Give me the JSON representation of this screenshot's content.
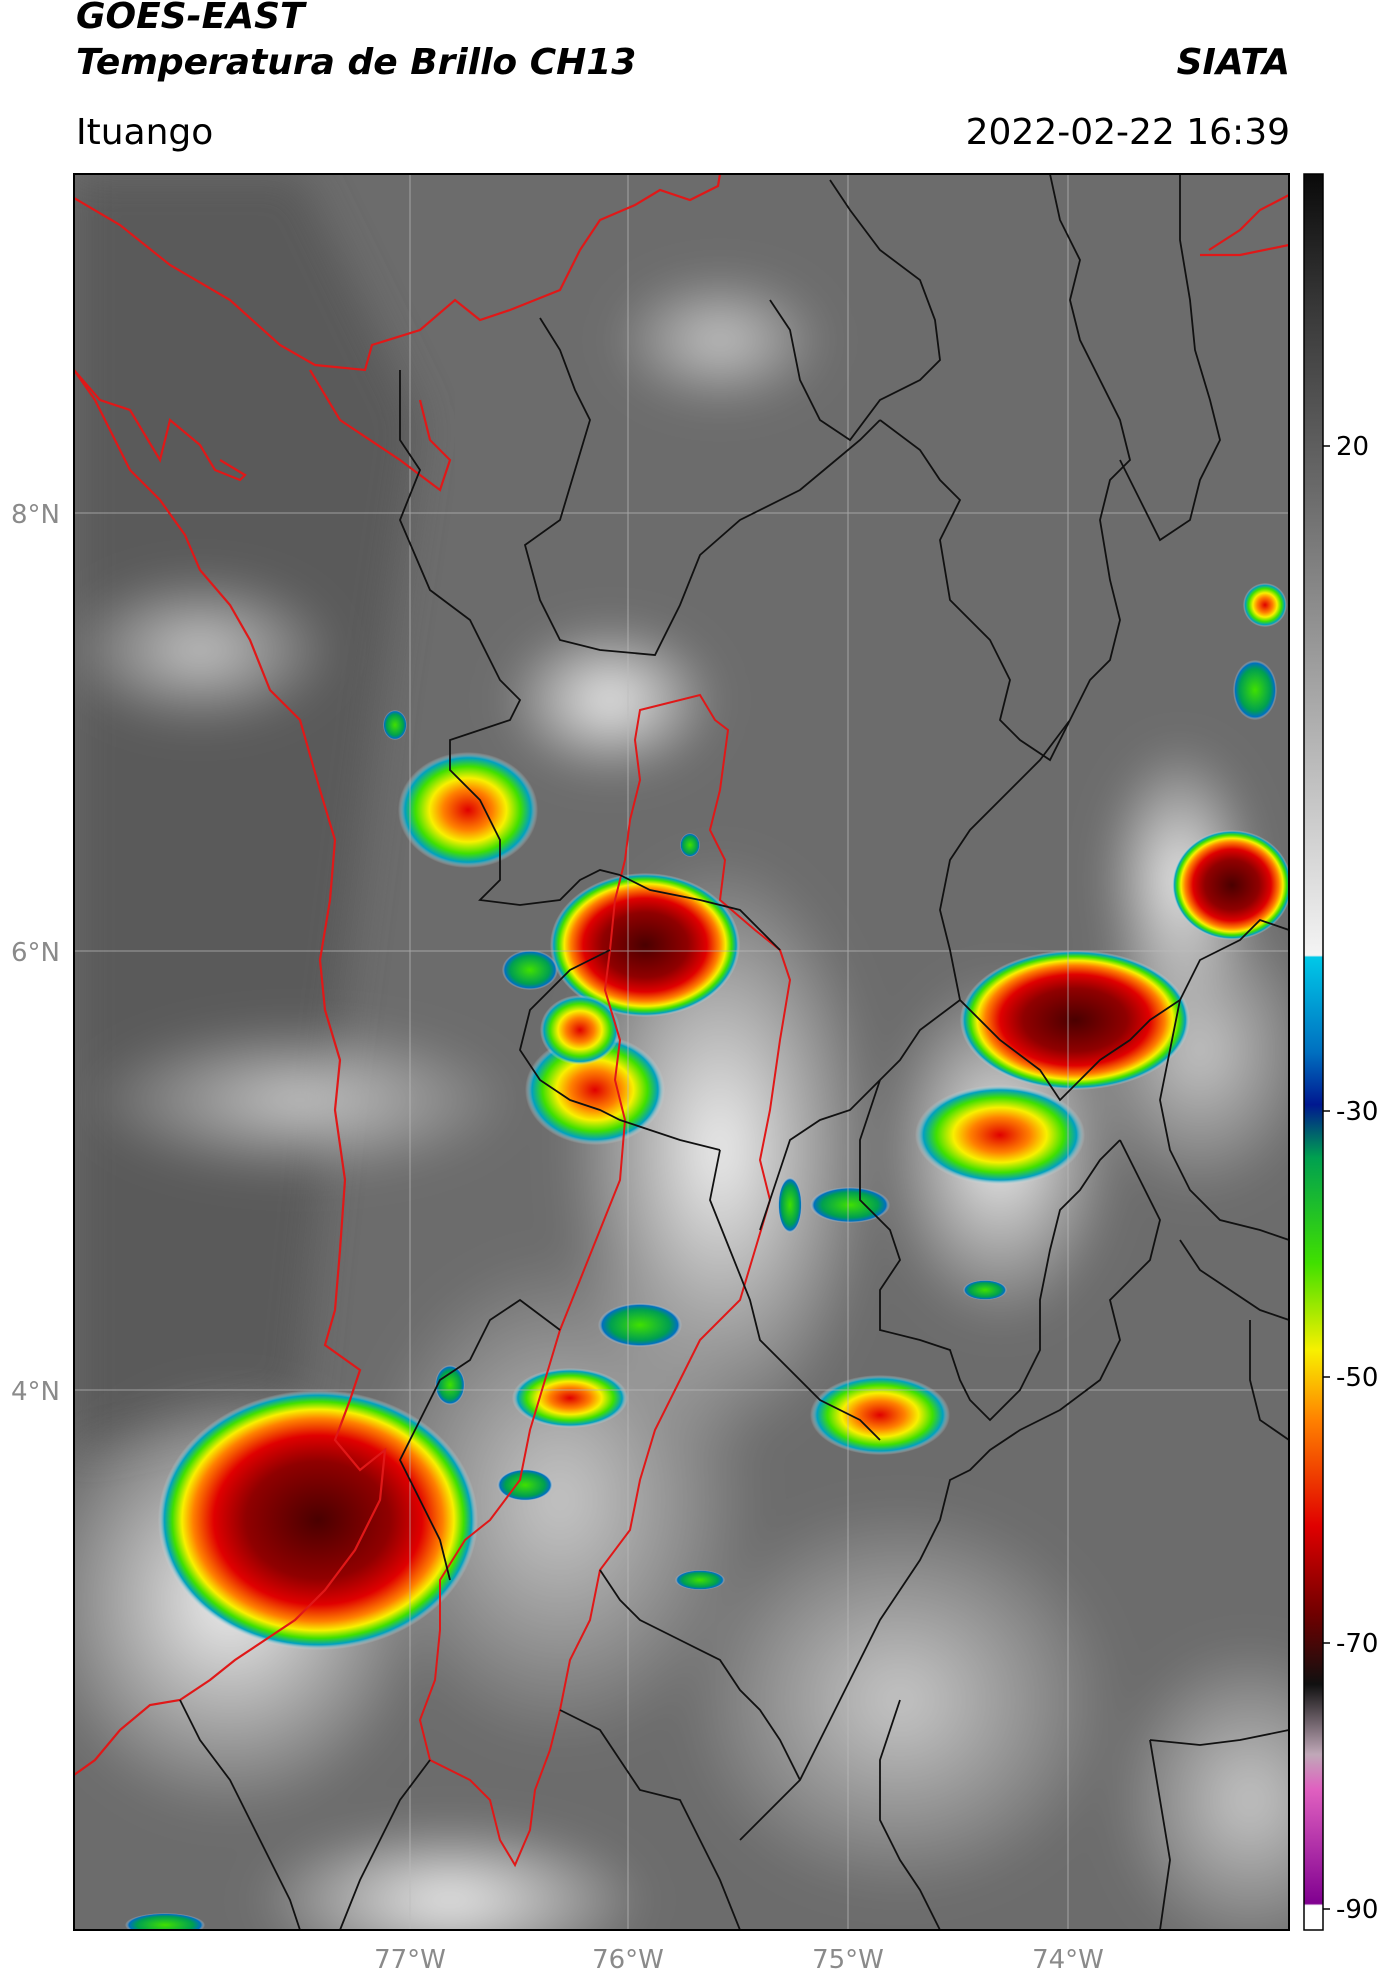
{
  "header": {
    "source": "GOES-EAST",
    "product": "Temperatura de Brillo CH13",
    "org": "SIATA",
    "location": "Ituango",
    "datetime": "2022-02-22 16:39"
  },
  "map": {
    "lon_labels": [
      "77°W",
      "76°W",
      "75°W",
      "74°W"
    ],
    "lat_labels": [
      "8°N",
      "6°N",
      "4°N"
    ],
    "border_colors": {
      "coast": "#e01818",
      "admin": "#000000",
      "highlight_region": "#e01818"
    }
  },
  "colorbar": {
    "ticks": [
      "20",
      "-30",
      "-50",
      "-70",
      "-90"
    ],
    "range": [
      -90,
      30
    ],
    "stops": [
      {
        "value": 30,
        "color": "#0a0a0a"
      },
      {
        "value": 20,
        "color": "#5e5e5e"
      },
      {
        "value": 0,
        "color": "#b0b0b0"
      },
      {
        "value": -17,
        "color": "#f4f4f4"
      },
      {
        "value": -18,
        "color": "#00c8e8"
      },
      {
        "value": -26,
        "color": "#0070c0"
      },
      {
        "value": -30,
        "color": "#001890"
      },
      {
        "value": -34,
        "color": "#00a050"
      },
      {
        "value": -42,
        "color": "#40e000"
      },
      {
        "value": -48,
        "color": "#f8f000"
      },
      {
        "value": -52,
        "color": "#ff8000"
      },
      {
        "value": -60,
        "color": "#e00000"
      },
      {
        "value": -66,
        "color": "#700000"
      },
      {
        "value": -70,
        "color": "#101010"
      },
      {
        "value": -76,
        "color": "#c0a8b8"
      },
      {
        "value": -80,
        "color": "#e060c0"
      },
      {
        "value": -88,
        "color": "#800090"
      },
      {
        "value": -89,
        "color": "#ffffff"
      }
    ]
  }
}
